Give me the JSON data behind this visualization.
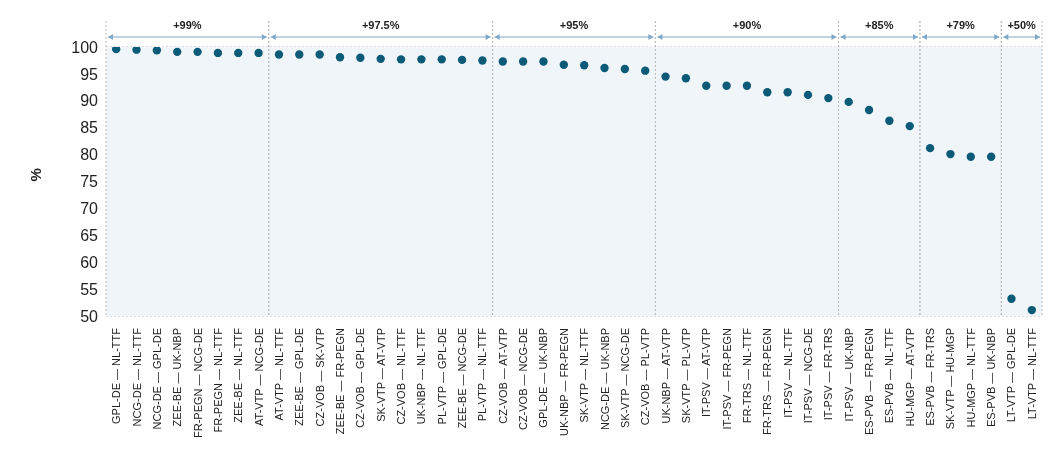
{
  "chart_data": {
    "type": "scatter",
    "ylabel": "%",
    "categories": [
      "GPL-DE — NL-TTF",
      "NCG-DE — NL-TTF",
      "NCG-DE — GPL-DE",
      "ZEE-BE — UK-NBP",
      "FR-PEGN — NCG-DE",
      "FR-PEGN — NL-TTF",
      "ZEE-BE — NL-TTF",
      "AT-VTP — NCG-DE",
      "AT-VTP — NL-TTF",
      "ZEE-BE — GPL-DE",
      "CZ-VOB — SK-VTP",
      "ZEE-BE — FR-PEGN",
      "CZ-VOB — GPL-DE",
      "SK-VTP — AT-VTP",
      "CZ-VOB — NL-TTF",
      "UK-NBP — NL-TTF",
      "PL-VTP — GPL-DE",
      "ZEE-BE — NCG-DE",
      "PL-VTP — NL-TTF",
      "CZ-VOB — AT-VTP",
      "CZ-VOB — NCG-DE",
      "GPL-DE — UK-NBP",
      "UK-NBP — FR-PEGN",
      "SK-VTP — NL-TTF",
      "NCG-DE — UK-NBP",
      "SK-VTP — NCG-DE",
      "CZ-VOB — PL-VTP",
      "UK-NBP — AT-VTP",
      "SK-VTP — PL-VTP",
      "IT-PSV — AT-VTP",
      "IT-PSV — FR-PEGN",
      "FR-TRS — NL-TTF",
      "FR-TRS — FR-PEGN",
      "IT-PSV — NL-TTF",
      "IT-PSV — NCG-DE",
      "IT-PSV — FR-TRS",
      "IT-PSV — UK-NBP",
      "ES-PVB — FR-PEGN",
      "ES-PVB — NL-TTF",
      "HU-MGP — AT-VTP",
      "ES-PVB — FR-TRS",
      "SK-VTP — HU-MGP",
      "HU-MGP — NL-TTF",
      "ES-PVB — UK-NBP",
      "LT-VTP — GPL-DE",
      "LT-VTP — NL-TTF"
    ],
    "values": [
      99.6,
      99.5,
      99.4,
      99.1,
      99.1,
      98.9,
      98.9,
      98.9,
      98.6,
      98.6,
      98.6,
      98.1,
      98.0,
      97.8,
      97.7,
      97.7,
      97.7,
      97.6,
      97.5,
      97.3,
      97.3,
      97.3,
      96.7,
      96.6,
      96.1,
      95.9,
      95.6,
      94.5,
      94.2,
      92.8,
      92.8,
      92.8,
      91.6,
      91.6,
      91.1,
      90.5,
      89.8,
      88.3,
      86.3,
      85.3,
      81.2,
      80.1,
      79.6,
      79.6,
      53.2,
      51.1
    ],
    "color": "#0b5a78",
    "marker": "circle",
    "ylim": [
      50,
      100
    ],
    "yticks": [
      50,
      55,
      60,
      65,
      70,
      75,
      80,
      85,
      90,
      95,
      100
    ],
    "grid": "y",
    "bands": [
      {
        "axis": "x",
        "from": "GPL-DE — NL-TTF",
        "to": "AT-VTP — NCG-DE",
        "label": "+99%",
        "color": "#f0f5f9"
      },
      {
        "axis": "x",
        "from": "AT-VTP — NL-TTF",
        "to": "PL-VTP — NL-TTF",
        "label": "+97.5%",
        "color": "#f0f5f9"
      },
      {
        "axis": "x",
        "from": "CZ-VOB — AT-VTP",
        "to": "CZ-VOB — PL-VTP",
        "label": "+95%",
        "color": "#f0f5f9"
      },
      {
        "axis": "x",
        "from": "UK-NBP — AT-VTP",
        "to": "IT-PSV — FR-TRS",
        "label": "+90%",
        "color": "#f0f5f9"
      },
      {
        "axis": "x",
        "from": "IT-PSV — UK-NBP",
        "to": "HU-MGP — AT-VTP",
        "label": "+85%",
        "color": "#f0f5f9"
      },
      {
        "axis": "x",
        "from": "ES-PVB — FR-TRS",
        "to": "ES-PVB — UK-NBP",
        "label": "+79%",
        "color": "#f0f5f9"
      },
      {
        "axis": "x",
        "from": "LT-VTP — GPL-DE",
        "to": "LT-VTP — NL-TTF",
        "label": "+50%",
        "color": "#f0f5f9"
      }
    ]
  }
}
